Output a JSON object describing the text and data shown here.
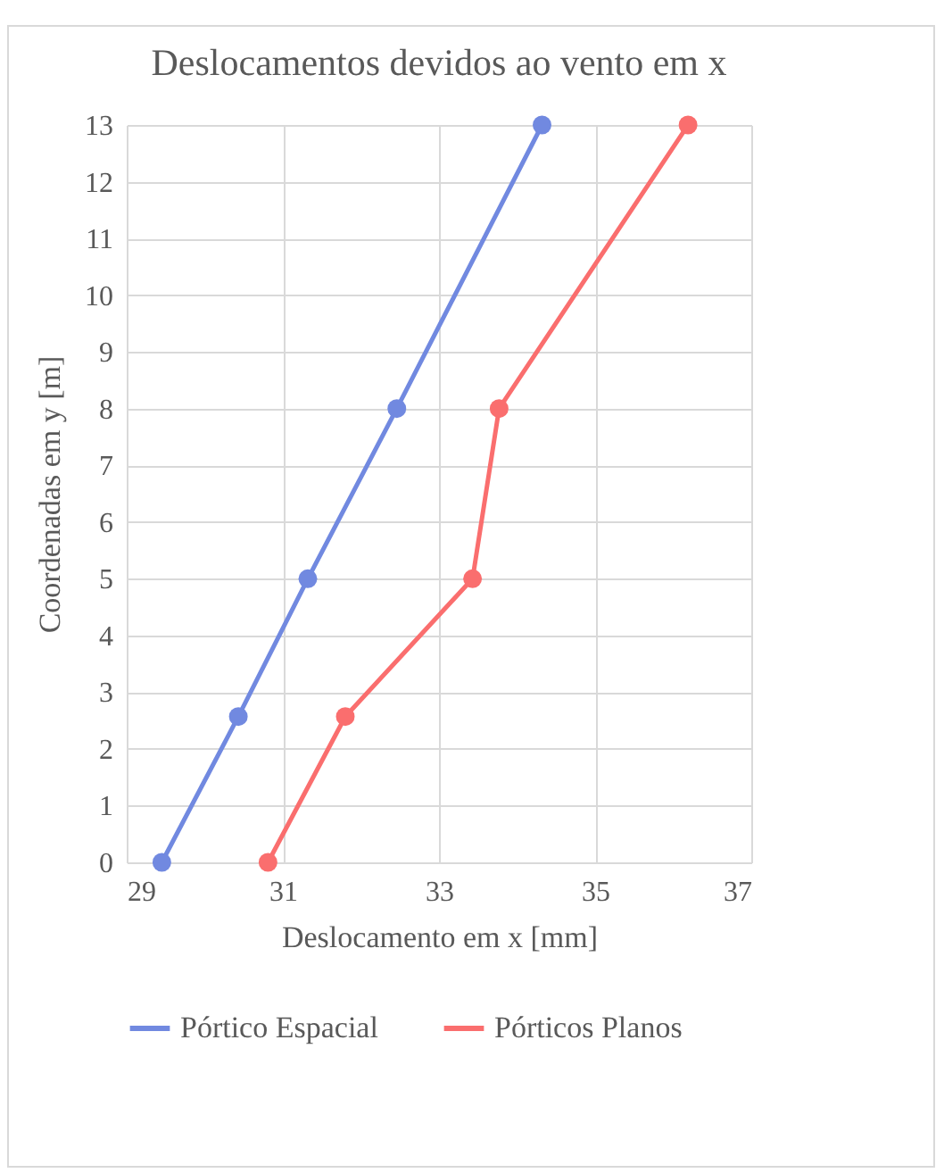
{
  "chart_data": {
    "type": "line",
    "title": "Deslocamentos devidos ao vento em x",
    "xlabel": "Deslocamento em x [mm]",
    "ylabel": "Coordenadas em y [m]",
    "series": [
      {
        "name": "Pórtico Espacial",
        "color": "#7189e0",
        "x": [
          29.45,
          30.43,
          31.32,
          32.46,
          34.32
        ],
        "values": [
          0,
          2.57,
          5,
          8,
          13
        ]
      },
      {
        "name": "Pórticos Planos",
        "color": "#fa6e6e",
        "x": [
          30.81,
          31.8,
          33.43,
          33.77,
          36.19
        ],
        "values": [
          0,
          2.57,
          5,
          8,
          13
        ]
      }
    ],
    "xlim": [
      29,
      37
    ],
    "xticks": [
      29,
      31,
      33,
      35,
      37
    ],
    "ylim": [
      0,
      13
    ],
    "yticks": [
      0,
      1,
      2,
      3,
      4,
      5,
      6,
      7,
      8,
      9,
      10,
      11,
      12,
      13
    ],
    "grid": true,
    "legend": "bottom",
    "marker": "circle",
    "line_style": "solid"
  }
}
